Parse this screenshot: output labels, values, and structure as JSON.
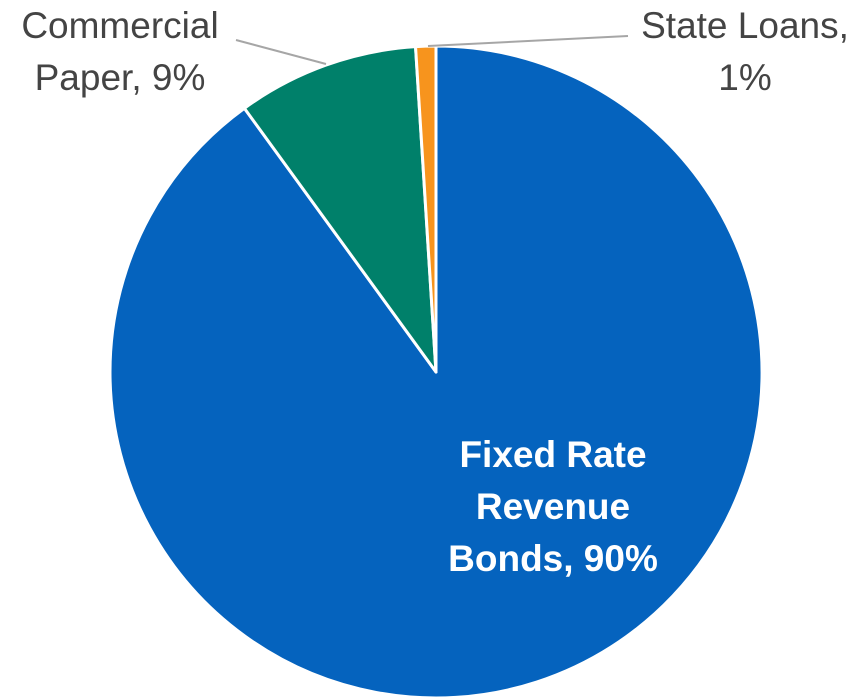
{
  "chart_data": {
    "type": "pie",
    "start_angle_deg": 0,
    "direction": "clockwise",
    "slices": [
      {
        "label": "Fixed Rate Revenue Bonds",
        "value": 90,
        "color": "#0563BE",
        "label_lines": [
          "Fixed Rate",
          "Revenue",
          "Bonds, 90%"
        ],
        "label_style": "inside"
      },
      {
        "label": "Commercial Paper",
        "value": 9,
        "color": "#00806A",
        "label_lines": [
          "Commercial",
          "Paper, 9%"
        ],
        "label_style": "outside"
      },
      {
        "label": "State Loans",
        "value": 1,
        "color": "#F7941D",
        "label_lines": [
          "State Loans,",
          "1%"
        ],
        "label_style": "outside"
      }
    ]
  }
}
